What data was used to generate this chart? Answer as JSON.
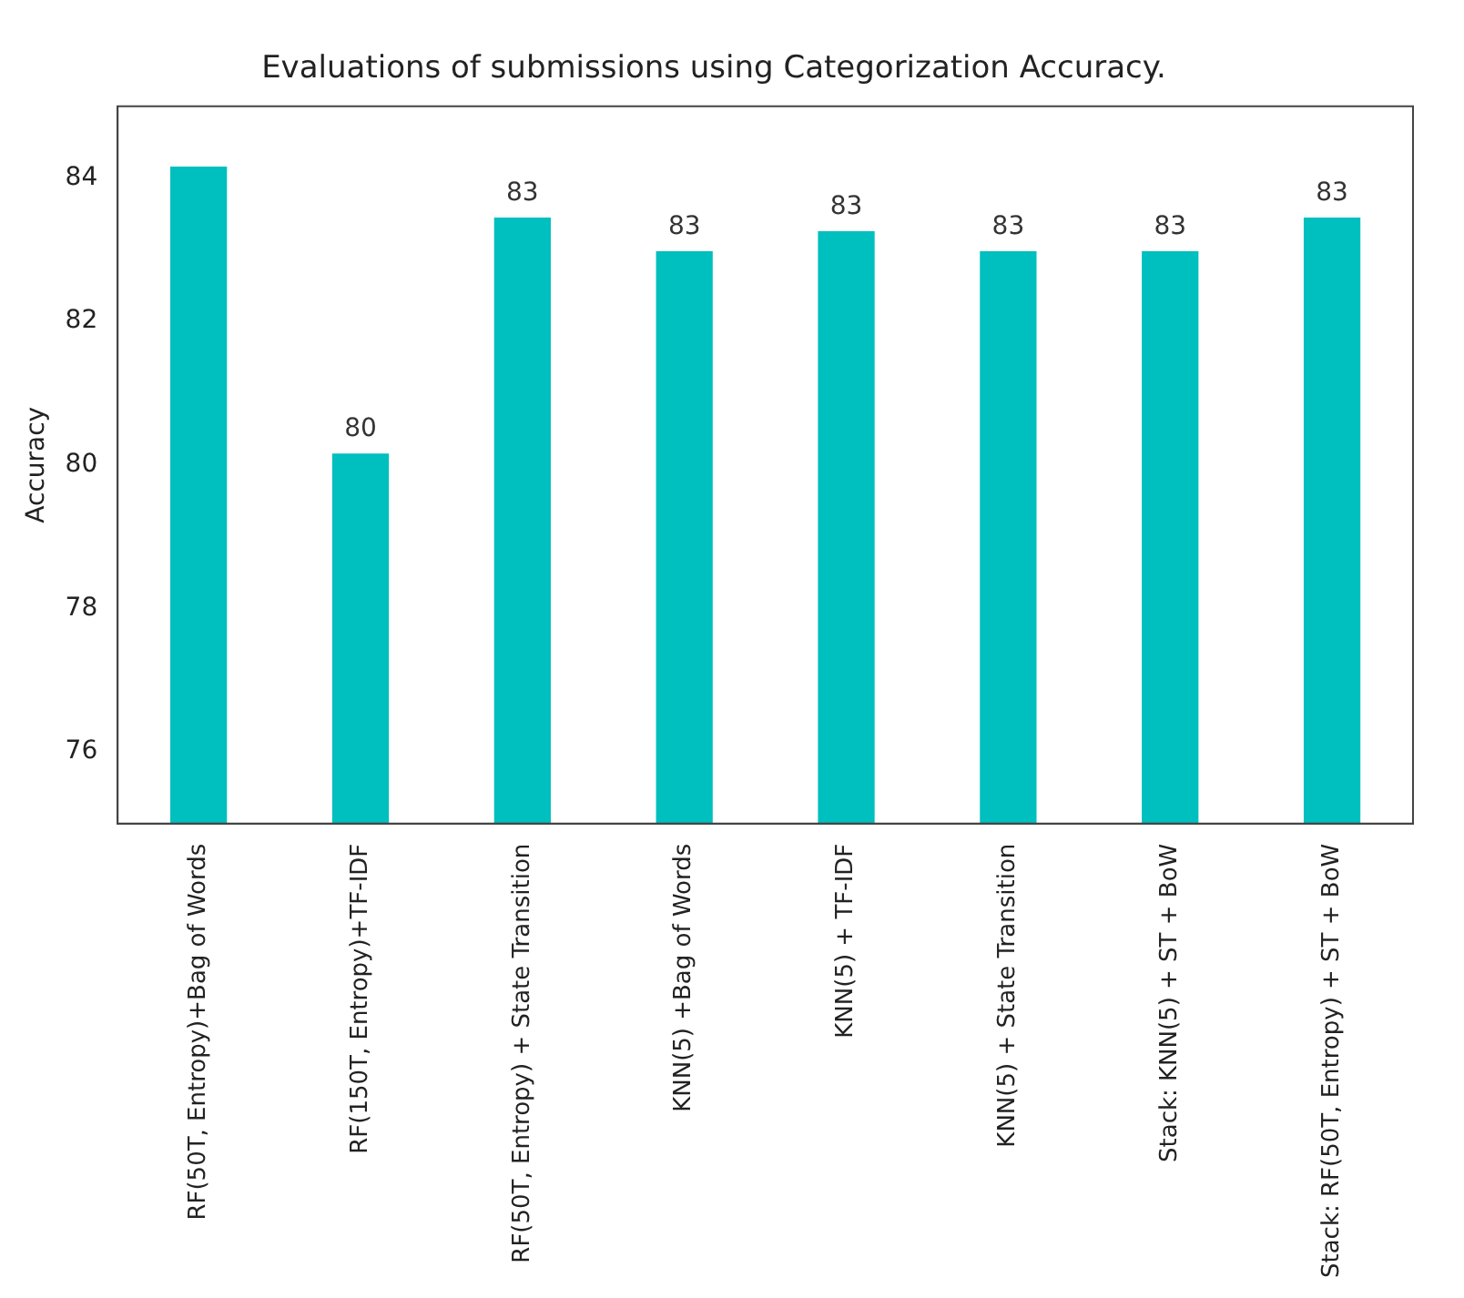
{
  "chart_data": {
    "type": "bar",
    "title": "Evaluations of submissions using Categorization Accuracy.",
    "ylabel": "Accuracy",
    "categories": [
      "RF(50T, Entropy)+Bag of Words",
      "RF(150T, Entropy)+TF-IDF",
      "RF(50T, Entropy) + State Transition",
      "KNN(5) +Bag of Words",
      "KNN(5) + TF-IDF",
      "KNN(5) + State Transition",
      "Stack: KNN(5) + ST + BoW",
      "Stack: RF(50T, Entropy) + ST + BoW"
    ],
    "values": [
      84.16,
      80.16,
      83.45,
      82.98,
      83.26,
      82.98,
      82.98,
      83.45
    ],
    "value_labels": [
      null,
      "80",
      "83",
      "83",
      "83",
      "83",
      "83",
      "83"
    ],
    "color": "#00bfbf",
    "ylim": [
      75,
      85
    ],
    "yticks": [
      76,
      78,
      80,
      82,
      84
    ],
    "grid": false,
    "legend": false
  }
}
